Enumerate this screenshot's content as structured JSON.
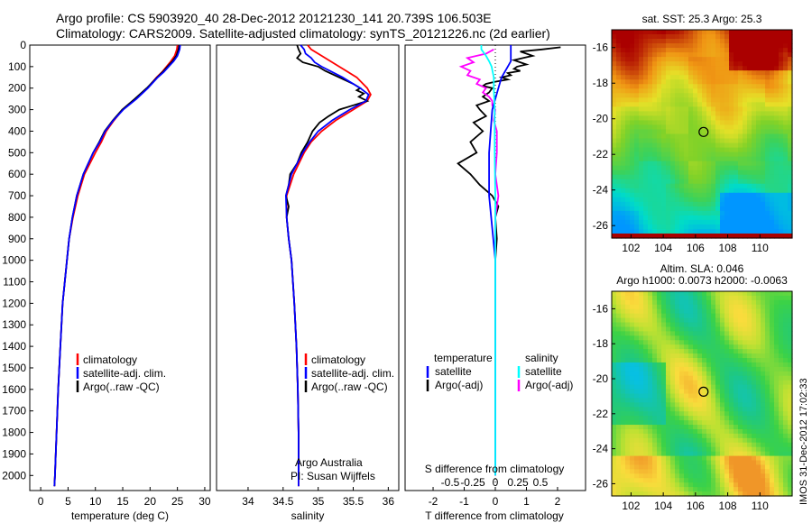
{
  "header": {
    "line1": "Argo profile: CS 5903920_40 28-Dec-2012 20121230_141 20.739S 106.503E",
    "line2": "Climatology: CARS2009. Satellite-adjusted climatology: synTS_20121226.nc (2d earlier)"
  },
  "colors": {
    "climatology": "#ff0000",
    "satellite": "#0000ff",
    "argo": "#000000",
    "salinity_satellite": "#00ffff",
    "salinity_argo": "#ff00ff"
  },
  "chart_data": [
    {
      "type": "line",
      "panel": "temperature",
      "xlabel": "temperature (deg C)",
      "ylabel": "",
      "xlim": [
        -2,
        31
      ],
      "ylim": [
        2070,
        0
      ],
      "xticks": [
        "0",
        "5",
        "10",
        "15",
        "20",
        "25",
        "30"
      ],
      "yticks": [
        "0",
        "100",
        "200",
        "300",
        "400",
        "500",
        "600",
        "700",
        "800",
        "900",
        "1000",
        "1100",
        "1200",
        "1300",
        "1400",
        "1500",
        "1600",
        "1700",
        "1800",
        "1900",
        "2000"
      ],
      "legend": [
        "climatology",
        "satellite-adj. clim.",
        "Argo(..raw -QC)"
      ],
      "depth": [
        0,
        20,
        50,
        75,
        100,
        125,
        150,
        200,
        250,
        300,
        350,
        400,
        450,
        500,
        600,
        700,
        800,
        900,
        1000,
        1200,
        1400,
        1600,
        1800,
        2000,
        2050
      ],
      "series": [
        {
          "name": "climatology",
          "values": [
            25.0,
            24.9,
            24.5,
            23.8,
            23.0,
            22.2,
            21.2,
            19.5,
            17.3,
            15.0,
            13.4,
            12.0,
            11.1,
            10.0,
            8.0,
            6.8,
            5.9,
            5.2,
            4.8,
            4.0,
            3.6,
            3.2,
            2.9,
            2.6,
            2.5
          ]
        },
        {
          "name": "satellite-adj. clim.",
          "values": [
            25.5,
            25.4,
            25.0,
            24.3,
            23.4,
            22.5,
            21.4,
            19.6,
            17.5,
            15.1,
            13.3,
            11.8,
            10.8,
            9.6,
            7.8,
            6.6,
            5.8,
            5.2,
            4.8,
            4.0,
            3.6,
            3.2,
            2.9,
            2.6,
            2.5
          ]
        },
        {
          "name": "Argo(..raw -QC)",
          "values": [
            25.3,
            25.2,
            24.8,
            24.1,
            23.2,
            22.3,
            21.3,
            19.4,
            17.2,
            14.9,
            13.2,
            11.7,
            10.7,
            9.6,
            7.8,
            6.6,
            5.8,
            5.2,
            4.8,
            4.0,
            3.6,
            3.2,
            2.9,
            2.6,
            2.5
          ]
        }
      ]
    },
    {
      "type": "line",
      "panel": "salinity",
      "xlabel": "salinity",
      "ylabel": "",
      "xlim": [
        33.55,
        36.15
      ],
      "ylim": [
        2070,
        0
      ],
      "xticks": [
        "34",
        "34.5",
        "35",
        "35.5",
        "36"
      ],
      "legend": [
        "climatology",
        "satellite-adj. clim.",
        "Argo(..raw -QC)"
      ],
      "annotation": [
        "Argo Australia",
        "PI: Susan Wijffels"
      ],
      "series": [
        {
          "name": "climatology",
          "depth": [
            0,
            20,
            50,
            100,
            150,
            200,
            230,
            260,
            300,
            350,
            400,
            450,
            500,
            600,
            700,
            800,
            900,
            1000,
            1200,
            1400,
            1600,
            1800,
            2050
          ],
          "values": [
            34.85,
            34.9,
            35.05,
            35.3,
            35.55,
            35.7,
            35.75,
            35.7,
            35.5,
            35.25,
            35.05,
            34.9,
            34.8,
            34.65,
            34.55,
            34.55,
            34.58,
            34.62,
            34.66,
            34.69,
            34.71,
            34.72,
            34.72
          ]
        },
        {
          "name": "satellite-adj. clim.",
          "depth": [
            0,
            20,
            40,
            60,
            80,
            100,
            150,
            200,
            230,
            260,
            300,
            350,
            400,
            450,
            500,
            600,
            700,
            800,
            900,
            1000,
            1200,
            1400,
            1600,
            1800,
            2050
          ],
          "values": [
            34.75,
            34.8,
            34.82,
            34.9,
            34.95,
            35.05,
            35.35,
            35.6,
            35.72,
            35.68,
            35.45,
            35.2,
            35.0,
            34.88,
            34.78,
            34.62,
            34.54,
            34.55,
            34.58,
            34.62,
            34.66,
            34.69,
            34.71,
            34.72,
            34.72
          ]
        },
        {
          "name": "Argo(..raw -QC)",
          "depth": [
            0,
            20,
            40,
            60,
            80,
            100,
            120,
            150,
            180,
            200,
            210,
            225,
            240,
            260,
            280,
            300,
            330,
            360,
            400,
            450,
            500,
            550,
            600,
            650,
            700,
            750,
            800,
            900,
            1000,
            1200,
            1400,
            1600,
            1800,
            2000
          ],
          "values": [
            34.7,
            34.72,
            34.75,
            34.7,
            34.78,
            35.0,
            35.1,
            35.3,
            35.5,
            35.6,
            35.55,
            35.65,
            35.58,
            35.7,
            35.5,
            35.3,
            35.15,
            35.02,
            34.92,
            34.85,
            34.76,
            34.7,
            34.6,
            34.58,
            34.54,
            34.58,
            34.55,
            34.58,
            34.62,
            34.66,
            34.69,
            34.71,
            34.72,
            34.72
          ]
        }
      ]
    },
    {
      "type": "line",
      "panel": "difference",
      "xlabel": "T difference from climatology",
      "xlabel_top": "S difference from climatology",
      "xlim": [
        -2.9,
        2.9
      ],
      "ylim": [
        2070,
        0
      ],
      "xticks": [
        "-2",
        "-1",
        "0",
        "1",
        "2"
      ],
      "xticks_top": [
        "-0.5",
        "-0.25",
        "0",
        "0.25",
        "0.5"
      ],
      "legend_left_title": "temperature",
      "legend_right_title": "salinity",
      "legend_left": [
        "satellite",
        "Argo(-adj)"
      ],
      "legend_right": [
        "satellite",
        "Argo(-adj)"
      ],
      "series": [
        {
          "name": "T satellite",
          "depth": [
            0,
            20,
            50,
            75,
            100,
            150,
            200,
            300,
            500,
            700,
            1000,
            1500,
            2000
          ],
          "values": [
            0.5,
            0.5,
            0.5,
            0.5,
            0.4,
            0.2,
            0.1,
            -0.1,
            -0.2,
            -0.2,
            0,
            0,
            0
          ]
        },
        {
          "name": "T Argo(-adj)",
          "depth": [
            10,
            20,
            30,
            40,
            50,
            60,
            70,
            80,
            90,
            100,
            110,
            120,
            130,
            140,
            150,
            160,
            170,
            180,
            190,
            200,
            220,
            240,
            260,
            280,
            300,
            330,
            360,
            400,
            450,
            500,
            550,
            600,
            650,
            700,
            750,
            800,
            900,
            1000,
            1200,
            1500,
            2000
          ],
          "values": [
            2.1,
            1.5,
            0.8,
            1.0,
            1.2,
            0.9,
            0.6,
            0.8,
            1.0,
            0.7,
            0.6,
            0.8,
            0.4,
            0.5,
            0.2,
            0.4,
            0.0,
            -0.3,
            -0.4,
            -0.1,
            -0.2,
            -0.4,
            -0.2,
            -0.6,
            -0.5,
            -0.3,
            -0.7,
            -0.4,
            -0.8,
            -0.6,
            -1.2,
            -0.8,
            -0.5,
            -0.1,
            0.1,
            0,
            0.05,
            0,
            0,
            0,
            0
          ]
        },
        {
          "name": "S satellite",
          "depth": [
            0,
            20,
            50,
            75,
            100,
            150,
            200,
            300,
            500,
            700,
            1000,
            1500,
            2000
          ],
          "values": [
            -0.45,
            -0.45,
            -0.3,
            -0.2,
            -0.12,
            -0.05,
            -0.05,
            -0.02,
            -0.02,
            0,
            0,
            0,
            0
          ]
        },
        {
          "name": "S Argo(-adj)",
          "depth": [
            20,
            40,
            60,
            80,
            100,
            120,
            140,
            160,
            180,
            200,
            220,
            240,
            260,
            280,
            300,
            350,
            400,
            450,
            500,
            600,
            700,
            800,
            1000,
            1500,
            2000
          ],
          "values": [
            -0.05,
            -0.3,
            -0.9,
            -0.7,
            -1.1,
            -0.8,
            -0.9,
            -0.5,
            -0.6,
            -0.3,
            -0.4,
            -0.2,
            -0.1,
            -0.1,
            0.0,
            -0.05,
            0.05,
            0.05,
            0.05,
            0.0,
            0.1,
            0.0,
            0,
            0,
            0
          ]
        }
      ]
    },
    {
      "type": "heatmap",
      "panel": "sst-map",
      "title": "sat. SST: 25.3  Argo: 25.3",
      "xticks": [
        "102",
        "104",
        "106",
        "108",
        "110"
      ],
      "yticks": [
        "-16",
        "-18",
        "-20",
        "-22",
        "-24",
        "-26"
      ],
      "xlim": [
        100.8,
        112.0
      ],
      "ylim": [
        -26.7,
        -15.0
      ],
      "marker": {
        "lon": 106.5,
        "lat": -20.74
      }
    },
    {
      "type": "heatmap",
      "panel": "sla-map",
      "title": "Altim. SLA: 0.046",
      "subtitle": "Argo h1000: 0.0073 h2000: -0.0063",
      "xticks": [
        "102",
        "104",
        "106",
        "108",
        "110"
      ],
      "yticks": [
        "-16",
        "-18",
        "-20",
        "-22",
        "-24",
        "-26"
      ],
      "xlim": [
        100.8,
        112.0
      ],
      "ylim": [
        -26.7,
        -15.0
      ],
      "marker": {
        "lon": 106.5,
        "lat": -20.74
      }
    }
  ],
  "side_stamp": "IMOS 31-Dec-2012 17:02:33"
}
